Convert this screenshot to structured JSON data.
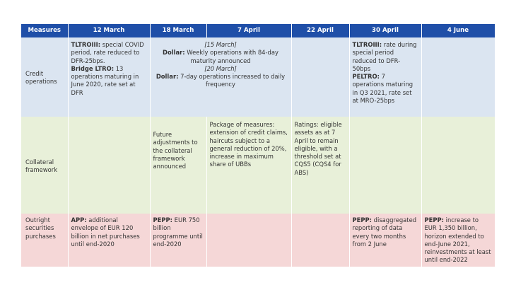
{
  "headers": [
    "Measures",
    "12 March",
    "18 March",
    "7 April",
    "22 April",
    "30 April",
    "4 June"
  ],
  "rows": {
    "credit": {
      "label": "Credit operations",
      "mar12_a_bold": "TLTROIII:",
      "mar12_a": " special COVID period, rate reduced to DFR-25bps.",
      "mar12_b_bold": "Bridge LTRO:",
      "mar12_b": " 13 operations maturing in June 2020, rate set at DFR",
      "span_date1": "[15 March]",
      "span_b1_bold": "Dollar:",
      "span_b1": " Weekly operations with 84-day maturity announced",
      "span_date2": "[20 March]",
      "span_b2_bold": "Dollar:",
      "span_b2": " 7-day operations increased to daily frequency",
      "apr30_a_bold": "TLTROIII:",
      "apr30_a": " rate during special period reduced to DFR-50bps",
      "apr30_b_bold": "PELTRO:",
      "apr30_b": " 7 operations maturing in Q3 2021, rate set at MRO-25bps"
    },
    "collateral": {
      "label": "Collateral framework",
      "mar18": "Future adjustments to the collateral framework announced",
      "apr7": "Package of measures: extension of credit claims, haircuts subject to a general reduction of 20%, increase in maximum share of UBBs",
      "apr22": "Ratings: eligible assets as at 7 April to remain eligible, with a threshold set at CQS5 (CQS4 for ABS)"
    },
    "outright": {
      "label": "Outright securities purchases",
      "mar12_bold": "APP:",
      "mar12": " additional envelope of EUR 120 billion in net purchases until end-2020",
      "mar18_bold": "PEPP:",
      "mar18": " EUR 750 billion programme until end-2020",
      "apr30_bold": "PEPP:",
      "apr30": " disaggregated reporting of data every two months from 2 June",
      "jun4_bold": "PEPP:",
      "jun4": " increase to EUR 1,350 billion, horizon extended to end-June 2021, reinvestments at least until end-2022"
    }
  }
}
